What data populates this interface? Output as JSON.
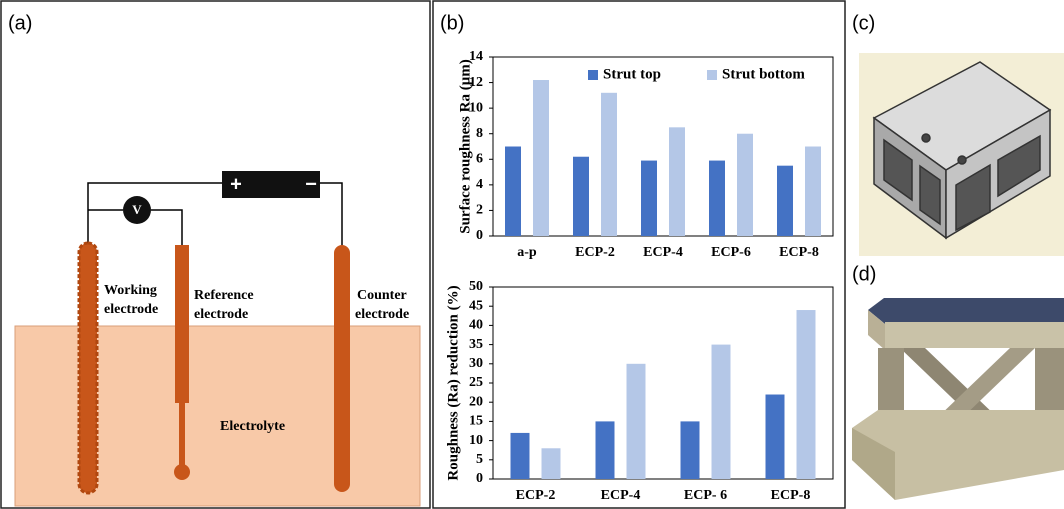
{
  "panel_labels": [
    "(a)",
    "(b)",
    "(c)",
    "(d)"
  ],
  "diagram": {
    "battery_plus": "+",
    "battery_minus": "−",
    "voltmeter": "V",
    "working_electrode": [
      "Working",
      "electrode"
    ],
    "reference_electrode": [
      "Reference",
      "electrode"
    ],
    "counter_electrode": [
      "Counter",
      "electrode"
    ],
    "electrolyte": "Electrolyte"
  },
  "chart_data": [
    {
      "type": "bar",
      "y_label": "Surface roughness Ra (μm)",
      "categories": [
        "a-p",
        "ECP-2",
        "ECP-4",
        "ECP-6",
        "ECP-8"
      ],
      "series": [
        {
          "name": "Strut top",
          "color": "#4472c4",
          "values": [
            7.0,
            6.2,
            5.9,
            5.9,
            5.5
          ]
        },
        {
          "name": "Strut bottom",
          "color": "#b4c7e7",
          "values": [
            12.2,
            11.2,
            8.5,
            8.0,
            7.0
          ]
        }
      ],
      "ylim": [
        0,
        14
      ],
      "yticks": [
        0,
        2,
        4,
        6,
        8,
        10,
        12,
        14
      ],
      "grid": false,
      "legend": "top-right"
    },
    {
      "type": "bar",
      "y_label": "Roughness (Ra) reduction  (%)",
      "categories": [
        "ECP-2",
        "ECP-4",
        "ECP- 6",
        "ECP-8"
      ],
      "series": [
        {
          "name": "Strut top",
          "color": "#4472c4",
          "values": [
            12,
            15,
            15,
            22
          ]
        },
        {
          "name": "Strut bottom",
          "color": "#b4c7e7",
          "values": [
            8,
            30,
            35,
            44
          ]
        }
      ],
      "ylim": [
        0,
        50
      ],
      "yticks": [
        0,
        5,
        10,
        15,
        20,
        25,
        30,
        35,
        40,
        45,
        50
      ],
      "grid": false,
      "legend": "none"
    }
  ]
}
